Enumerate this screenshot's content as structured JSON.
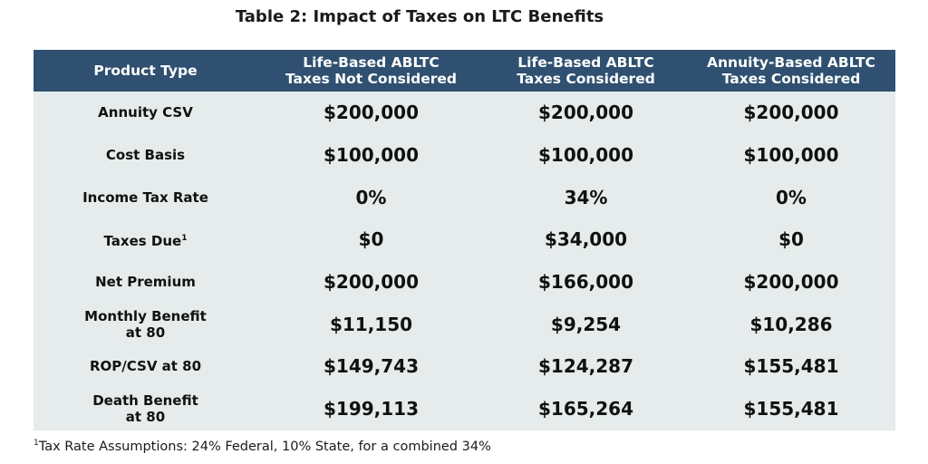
{
  "title": "Table 2: Impact of Taxes on LTC Benefits",
  "table": {
    "headers": [
      [
        "Product Type"
      ],
      [
        "Life-Based ABLTC",
        "Taxes Not Considered"
      ],
      [
        "Life-Based ABLTC",
        "Taxes Considered"
      ],
      [
        "Annuity-Based ABLTC",
        "Taxes Considered"
      ]
    ],
    "rows": [
      {
        "label": [
          "Annuity CSV"
        ],
        "values": [
          "$200,000",
          "$200,000",
          "$200,000"
        ]
      },
      {
        "label": [
          "Cost Basis"
        ],
        "values": [
          "$100,000",
          "$100,000",
          "$100,000"
        ]
      },
      {
        "label": [
          "Income Tax Rate"
        ],
        "values": [
          "0%",
          "34%",
          "0%"
        ]
      },
      {
        "label": [
          "Taxes Due"
        ],
        "label_sup": "1",
        "values": [
          "$0",
          "$34,000",
          "$0"
        ]
      },
      {
        "label": [
          "Net Premium"
        ],
        "values": [
          "$200,000",
          "$166,000",
          "$200,000"
        ]
      },
      {
        "label": [
          "Monthly Benefit",
          "at 80"
        ],
        "values": [
          "$11,150",
          "$9,254",
          "$10,286"
        ]
      },
      {
        "label": [
          "ROP/CSV at 80"
        ],
        "values": [
          "$149,743",
          "$124,287",
          "$155,481"
        ]
      },
      {
        "label": [
          "Death Benefit",
          "at 80"
        ],
        "values": [
          "$199,113",
          "$165,264",
          "$155,481"
        ]
      }
    ]
  },
  "footnote": {
    "marker": "1",
    "text": "Tax Rate Assumptions: 24% Federal, 10% State, for a combined 34%"
  },
  "colors": {
    "header_bg": "#2f5070",
    "body_bg": "#e5eceb"
  }
}
